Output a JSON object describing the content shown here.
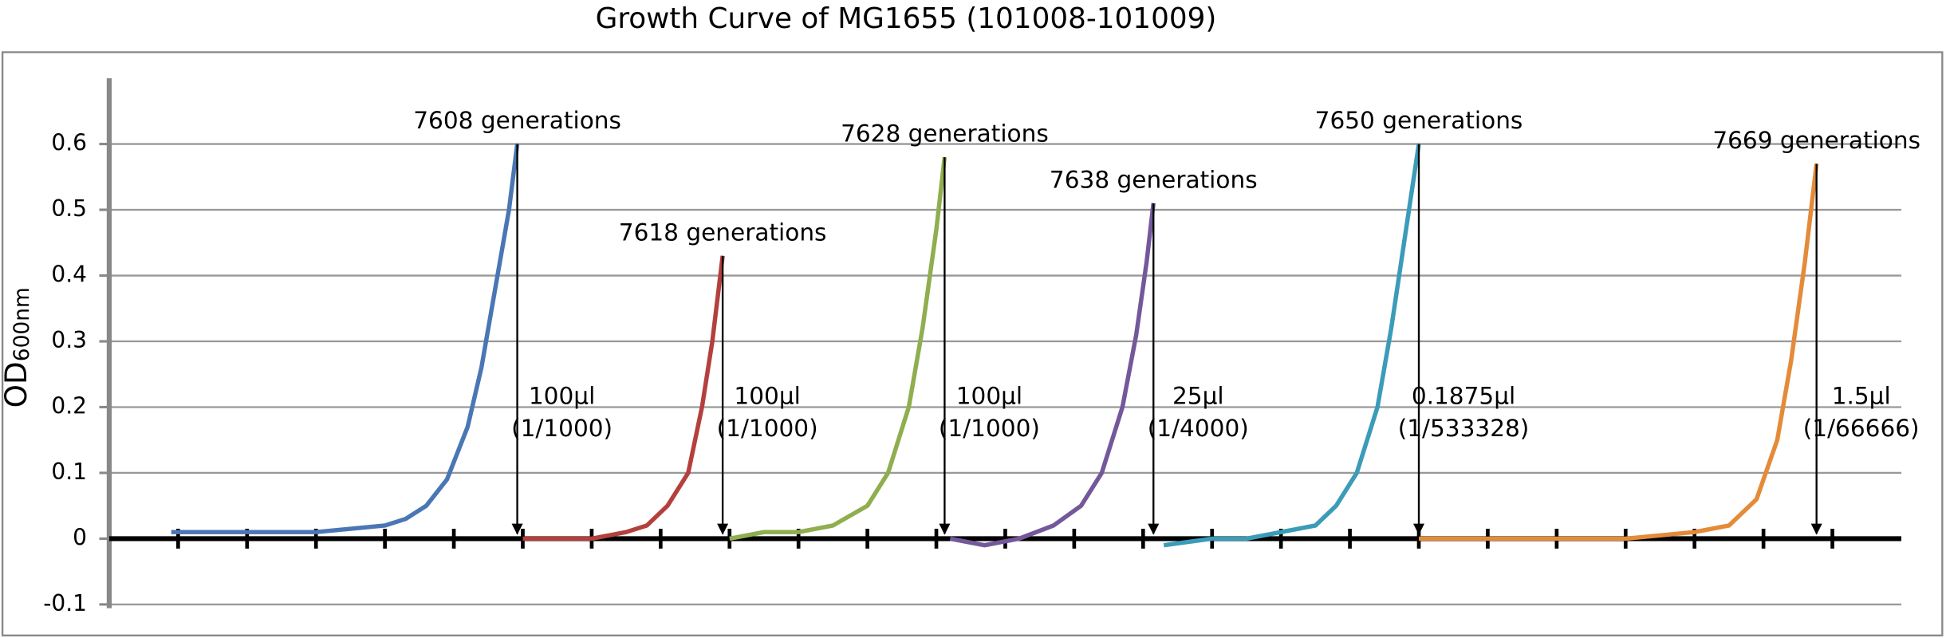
{
  "chart_data": {
    "type": "line",
    "title": "Growth Curve of MG1655 (101008-101009)",
    "ylabel": "OD",
    "ylabel_sub": "600nm",
    "xlim": [
      0,
      26
    ],
    "xticks": [
      1,
      2,
      3,
      4,
      5,
      6,
      7,
      8,
      9,
      10,
      11,
      12,
      13,
      14,
      15,
      16,
      17,
      18,
      19,
      20,
      21,
      22,
      23,
      24,
      25
    ],
    "ylim": [
      -0.1,
      0.7
    ],
    "yticks": [
      -0.1,
      0,
      0.1,
      0.2,
      0.3,
      0.4,
      0.5,
      0.6
    ],
    "grid": true,
    "series": [
      {
        "label": "7608 generations",
        "note": [
          "100μl",
          "(1/1000)"
        ],
        "color": "#4a77b4",
        "x": [
          0.9,
          1.5,
          2,
          2.5,
          3,
          3.5,
          4,
          4.3,
          4.6,
          4.9,
          5.2,
          5.4,
          5.6,
          5.8,
          5.92
        ],
        "values": [
          0.01,
          0.01,
          0.01,
          0.01,
          0.01,
          0.015,
          0.02,
          0.03,
          0.05,
          0.09,
          0.17,
          0.26,
          0.38,
          0.5,
          0.6
        ]
      },
      {
        "label": "7618 generations",
        "note": [
          "100μl",
          "(1/1000)"
        ],
        "color": "#b4403e",
        "x": [
          6.0,
          6.5,
          7,
          7.5,
          7.8,
          8.1,
          8.4,
          8.6,
          8.75,
          8.9
        ],
        "values": [
          0.0,
          0.0,
          0.0,
          0.01,
          0.02,
          0.05,
          0.1,
          0.2,
          0.3,
          0.43
        ]
      },
      {
        "label": "7628 generations",
        "note": [
          "100μl",
          "(1/1000)"
        ],
        "color": "#8fae4f",
        "x": [
          9.0,
          9.5,
          10,
          10.5,
          11,
          11.3,
          11.6,
          11.8,
          12.0,
          12.12
        ],
        "values": [
          0.0,
          0.01,
          0.01,
          0.02,
          0.05,
          0.1,
          0.2,
          0.32,
          0.47,
          0.58
        ]
      },
      {
        "label": "7638 generations",
        "note": [
          "25μl",
          "(1/4000)"
        ],
        "color": "#74589a",
        "x": [
          12.2,
          12.7,
          13.2,
          13.7,
          14.1,
          14.4,
          14.7,
          14.9,
          15.05,
          15.15
        ],
        "values": [
          0.0,
          -0.01,
          0.0,
          0.02,
          0.05,
          0.1,
          0.2,
          0.31,
          0.42,
          0.51
        ]
      },
      {
        "label": "7650 generations",
        "note": [
          "0.1875μl",
          "(1/533328)"
        ],
        "color": "#3a9cb8",
        "x": [
          15.3,
          16,
          16.5,
          17,
          17.5,
          17.8,
          18.1,
          18.4,
          18.6,
          18.8,
          19.0
        ],
        "values": [
          -0.01,
          0,
          0,
          0.01,
          0.02,
          0.05,
          0.1,
          0.2,
          0.32,
          0.46,
          0.6
        ]
      },
      {
        "label": "7669 generations",
        "note": [
          "1.5μl",
          "(1/66666)"
        ],
        "color": "#e48b3a",
        "x": [
          19.0,
          20,
          21,
          22,
          23,
          23.5,
          23.9,
          24.2,
          24.4,
          24.6,
          24.77
        ],
        "values": [
          0,
          0,
          0,
          0,
          0.01,
          0.02,
          0.06,
          0.15,
          0.27,
          0.42,
          0.57
        ]
      }
    ]
  }
}
